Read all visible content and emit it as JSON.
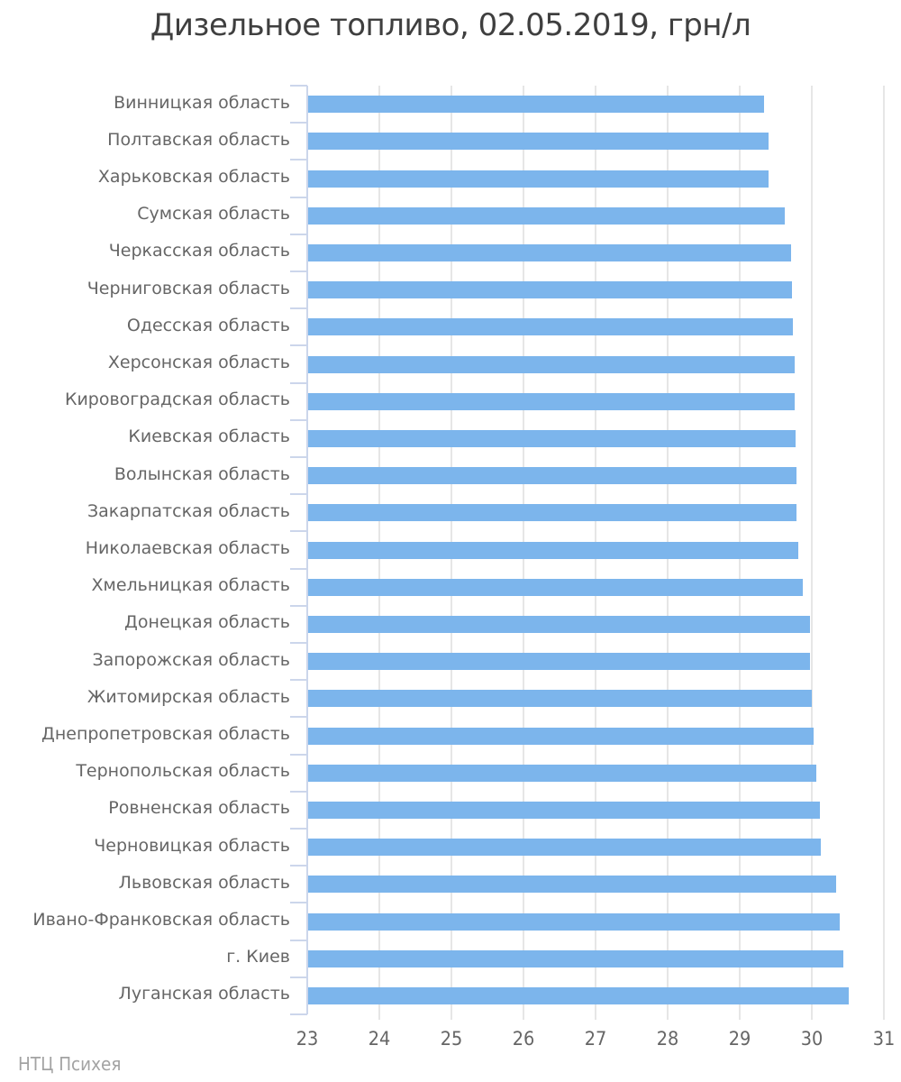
{
  "chart_data": {
    "type": "bar",
    "orientation": "horizontal",
    "title": "Дизельное топливо, 02.05.2019, грн/л",
    "xlabel": "",
    "ylabel": "",
    "xlim": [
      23,
      31
    ],
    "xticks": [
      23,
      24,
      25,
      26,
      27,
      28,
      29,
      30,
      31
    ],
    "grid": true,
    "legend": false,
    "categories": [
      "Винницкая область",
      "Полтавская область",
      "Харьковская область",
      "Сумская область",
      "Черкасская область",
      "Черниговская область",
      "Одесская область",
      "Херсонская область",
      "Кировоградская область",
      "Киевская область",
      "Волынская область",
      "Закарпатская область",
      "Николаевская область",
      "Хмельницкая область",
      "Донецкая область",
      "Запорожская область",
      "Житомирская область",
      "Днепропетровская область",
      "Тернопольская область",
      "Ровненская область",
      "Черновицкая область",
      "Львовская область",
      "Ивано-Франковская область",
      "г. Киев",
      "Луганская область"
    ],
    "values": [
      29.34,
      29.4,
      29.4,
      29.62,
      29.71,
      29.73,
      29.74,
      29.76,
      29.76,
      29.77,
      29.79,
      29.79,
      29.81,
      29.87,
      29.97,
      29.97,
      30.0,
      30.02,
      30.06,
      30.11,
      30.12,
      30.34,
      30.39,
      30.44,
      30.51
    ]
  },
  "credits": {
    "label": "НТЦ Психея"
  },
  "colors": {
    "bar": "#7cb5ec",
    "grid_line": "#e6e6e6",
    "axis_line": "#ccd6eb",
    "category_label": "#666666",
    "tick_label": "#666666",
    "title": "#3f3f3f",
    "credits": "#a3a3a3",
    "background": "#ffffff"
  }
}
